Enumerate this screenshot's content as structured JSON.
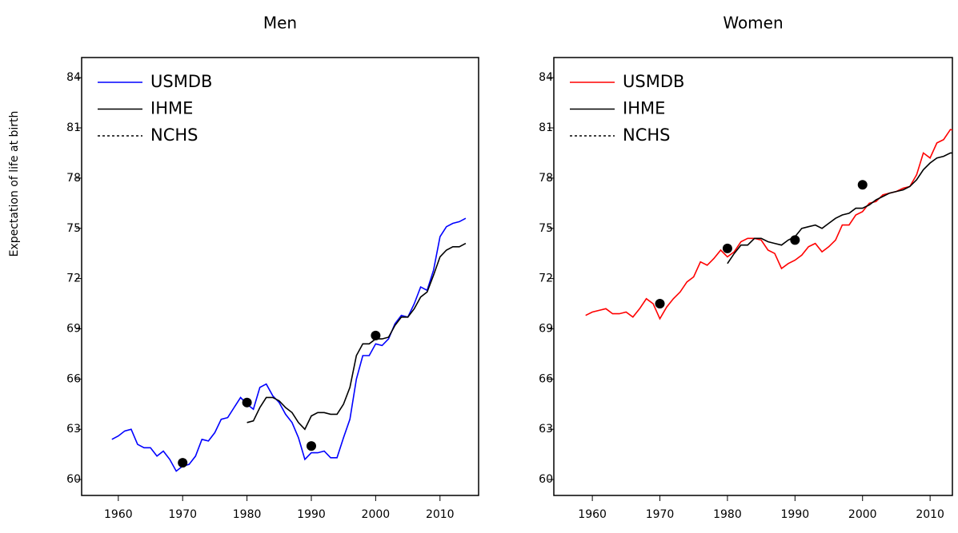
{
  "chart_data": [
    {
      "type": "line",
      "title": "Men",
      "ylabel": "Expectation of life at birth",
      "x": [
        1959,
        1960,
        1961,
        1962,
        1963,
        1964,
        1965,
        1966,
        1967,
        1968,
        1969,
        1970,
        1971,
        1972,
        1973,
        1974,
        1975,
        1976,
        1977,
        1978,
        1979,
        1980,
        1981,
        1982,
        1983,
        1984,
        1985,
        1986,
        1987,
        1988,
        1989,
        1990,
        1991,
        1992,
        1993,
        1994,
        1995,
        1996,
        1997,
        1998,
        1999,
        2000,
        2001,
        2002,
        2003,
        2004,
        2005,
        2006,
        2007,
        2008,
        2009,
        2010,
        2011,
        2012,
        2013,
        2014
      ],
      "series": [
        {
          "name": "USMDB",
          "color": "#0000ff",
          "linestyle": "solid",
          "values": [
            62.4,
            62.6,
            62.9,
            63.0,
            62.1,
            61.9,
            61.9,
            61.4,
            61.7,
            61.2,
            60.5,
            60.8,
            60.9,
            61.4,
            62.4,
            62.3,
            62.8,
            63.6,
            63.7,
            64.3,
            64.9,
            64.5,
            64.2,
            65.5,
            65.7,
            65.0,
            64.6,
            63.9,
            63.4,
            62.5,
            61.2,
            61.6,
            61.6,
            61.7,
            61.3,
            61.3,
            62.5,
            63.6,
            66.0,
            67.4,
            67.4,
            68.1,
            68.0,
            68.4,
            69.3,
            69.8,
            69.7,
            70.5,
            71.5,
            71.3,
            72.5,
            74.5,
            75.1,
            75.3,
            75.4,
            75.6
          ]
        },
        {
          "name": "IHME",
          "color": "#000000",
          "linestyle": "solid",
          "values": [
            null,
            null,
            null,
            null,
            null,
            null,
            null,
            null,
            null,
            null,
            null,
            null,
            null,
            null,
            null,
            null,
            null,
            null,
            null,
            null,
            null,
            63.4,
            63.5,
            64.3,
            64.9,
            64.9,
            64.7,
            64.3,
            64.0,
            63.4,
            63.0,
            63.8,
            64.0,
            64.0,
            63.9,
            63.9,
            64.5,
            65.5,
            67.4,
            68.1,
            68.1,
            68.4,
            68.4,
            68.5,
            69.2,
            69.7,
            69.7,
            70.2,
            70.9,
            71.2,
            72.2,
            73.3,
            73.7,
            73.9,
            73.9,
            74.1
          ]
        },
        {
          "name": "NCHS",
          "color": "#000000",
          "linestyle": "dotted",
          "marker": "circle",
          "values": [
            null,
            null,
            null,
            null,
            null,
            null,
            null,
            null,
            null,
            null,
            null,
            61.0,
            null,
            null,
            null,
            null,
            null,
            null,
            null,
            null,
            null,
            64.6,
            null,
            null,
            null,
            null,
            null,
            null,
            null,
            null,
            null,
            62.0,
            null,
            null,
            null,
            null,
            null,
            null,
            null,
            null,
            null,
            68.6,
            null,
            null,
            null,
            null,
            null,
            null,
            null,
            null,
            null,
            null,
            null,
            null,
            null,
            null
          ]
        }
      ],
      "xlim": [
        1954.3,
        2016
      ],
      "xticks": [
        1960,
        1970,
        1980,
        1990,
        2000,
        2010
      ],
      "ylim": [
        59.05,
        85.2
      ],
      "yticks": [
        60,
        63,
        66,
        69,
        72,
        75,
        78,
        81,
        84
      ],
      "legend": "upper left"
    },
    {
      "type": "line",
      "title": "Women",
      "x": [
        1959,
        1960,
        1961,
        1962,
        1963,
        1964,
        1965,
        1966,
        1967,
        1968,
        1969,
        1970,
        1971,
        1972,
        1973,
        1974,
        1975,
        1976,
        1977,
        1978,
        1979,
        1980,
        1981,
        1982,
        1983,
        1984,
        1985,
        1986,
        1987,
        1988,
        1989,
        1990,
        1991,
        1992,
        1993,
        1994,
        1995,
        1996,
        1997,
        1998,
        1999,
        2000,
        2001,
        2002,
        2003,
        2004,
        2005,
        2006,
        2007,
        2008,
        2009,
        2010,
        2011,
        2012,
        2013,
        2014
      ],
      "series": [
        {
          "name": "USMDB",
          "color": "#ff0000",
          "linestyle": "solid",
          "values": [
            69.8,
            70.0,
            70.1,
            70.2,
            69.9,
            69.9,
            70.0,
            69.7,
            70.2,
            70.8,
            70.5,
            69.6,
            70.3,
            70.8,
            71.2,
            71.8,
            72.1,
            73.0,
            72.8,
            73.2,
            73.7,
            73.3,
            73.6,
            74.2,
            74.4,
            74.4,
            74.3,
            73.7,
            73.5,
            72.6,
            72.9,
            73.1,
            73.4,
            73.9,
            74.1,
            73.6,
            73.9,
            74.3,
            75.2,
            75.2,
            75.8,
            76.0,
            76.5,
            76.6,
            77.0,
            77.1,
            77.2,
            77.4,
            77.5,
            78.2,
            79.5,
            79.2,
            80.1,
            80.3,
            80.9,
            80.8
          ]
        },
        {
          "name": "IHME",
          "color": "#000000",
          "linestyle": "solid",
          "values": [
            null,
            null,
            null,
            null,
            null,
            null,
            null,
            null,
            null,
            null,
            null,
            null,
            null,
            null,
            null,
            null,
            null,
            null,
            null,
            null,
            null,
            72.9,
            73.5,
            74.0,
            74.0,
            74.4,
            74.4,
            74.2,
            74.1,
            74.0,
            74.3,
            74.5,
            75.0,
            75.1,
            75.2,
            75.0,
            75.3,
            75.6,
            75.8,
            75.9,
            76.2,
            76.2,
            76.4,
            76.7,
            76.9,
            77.1,
            77.2,
            77.3,
            77.5,
            77.9,
            78.5,
            78.9,
            79.2,
            79.3,
            79.5,
            79.5
          ]
        },
        {
          "name": "NCHS",
          "color": "#000000",
          "linestyle": "dotted",
          "marker": "circle",
          "values": [
            null,
            null,
            null,
            null,
            null,
            null,
            null,
            null,
            null,
            null,
            null,
            70.5,
            null,
            null,
            null,
            null,
            null,
            null,
            null,
            null,
            null,
            73.8,
            null,
            null,
            null,
            null,
            null,
            null,
            null,
            null,
            null,
            74.3,
            null,
            null,
            null,
            null,
            null,
            null,
            null,
            null,
            null,
            77.6,
            null,
            null,
            null,
            null,
            null,
            null,
            null,
            null,
            null,
            null,
            null,
            null,
            null,
            null
          ]
        }
      ],
      "xlim": [
        1954.3,
        2013.3
      ],
      "xticks": [
        1960,
        1970,
        1980,
        1990,
        2000,
        2010
      ],
      "ylim": [
        59.05,
        85.2
      ],
      "yticks": [
        60,
        63,
        66,
        69,
        72,
        75,
        78,
        81,
        84
      ],
      "legend": "upper left"
    }
  ]
}
